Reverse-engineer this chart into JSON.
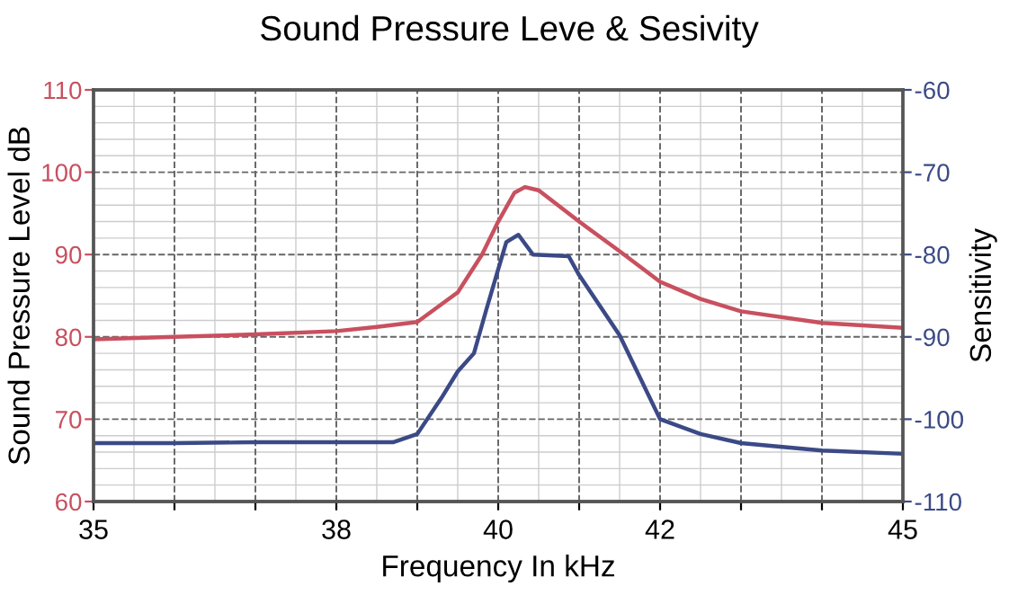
{
  "chart_data": {
    "type": "line",
    "title": "Sound Pressure Leve & Sesivity",
    "xlabel": "Frequency In kHz",
    "ylabel": "Sound Pressure Level dB",
    "y2label": "Sensitivity",
    "xlim": [
      35,
      45
    ],
    "xticks": [
      35,
      {
        "value": 36,
        "label": null
      },
      {
        "value": 37,
        "label": null
      },
      38,
      {
        "value": 39,
        "label": null
      },
      40,
      {
        "value": 41,
        "label": null
      },
      42,
      {
        "value": 43,
        "label": null
      },
      {
        "value": 44,
        "label": null
      },
      45
    ],
    "ylim": [
      60,
      110
    ],
    "yticks": [
      60,
      70,
      80,
      90,
      100,
      110
    ],
    "y2lim": [
      -110,
      -60
    ],
    "y2ticks": [
      -110,
      -100,
      -90,
      -80,
      -70,
      -60
    ],
    "grid": true,
    "marker": "none",
    "line_style": "solid",
    "series": [
      {
        "color": "#c8505f",
        "x": [
          35,
          36,
          37,
          38,
          38.5,
          39,
          39.5,
          39.8,
          40,
          40.2,
          40.33,
          40.5,
          41,
          41.5,
          42,
          42.5,
          43,
          44,
          45
        ],
        "values": [
          79.7,
          80.0,
          80.3,
          80.7,
          81.2,
          81.8,
          85.4,
          90,
          94,
          97.5,
          98.2,
          97.8,
          94,
          90.4,
          86.7,
          84.6,
          83.1,
          81.7,
          81.1
        ]
      },
      {
        "color": "#3b4a86",
        "axis": "y2",
        "x": [
          35,
          36,
          37,
          38,
          38.7,
          39,
          39.3,
          39.5,
          39.7,
          39.85,
          40,
          40.1,
          40.25,
          40.43,
          40.87,
          41,
          41.5,
          42,
          42.5,
          43,
          44,
          45
        ],
        "values": [
          -102.9,
          -102.9,
          -102.8,
          -102.8,
          -102.8,
          -101.8,
          -97.4,
          -94.2,
          -92,
          -86.8,
          -81.8,
          -78.5,
          -77.6,
          -80,
          -80.2,
          -82.5,
          -89.8,
          -100,
          -101.8,
          -102.9,
          -103.8,
          -104.2
        ]
      }
    ]
  }
}
